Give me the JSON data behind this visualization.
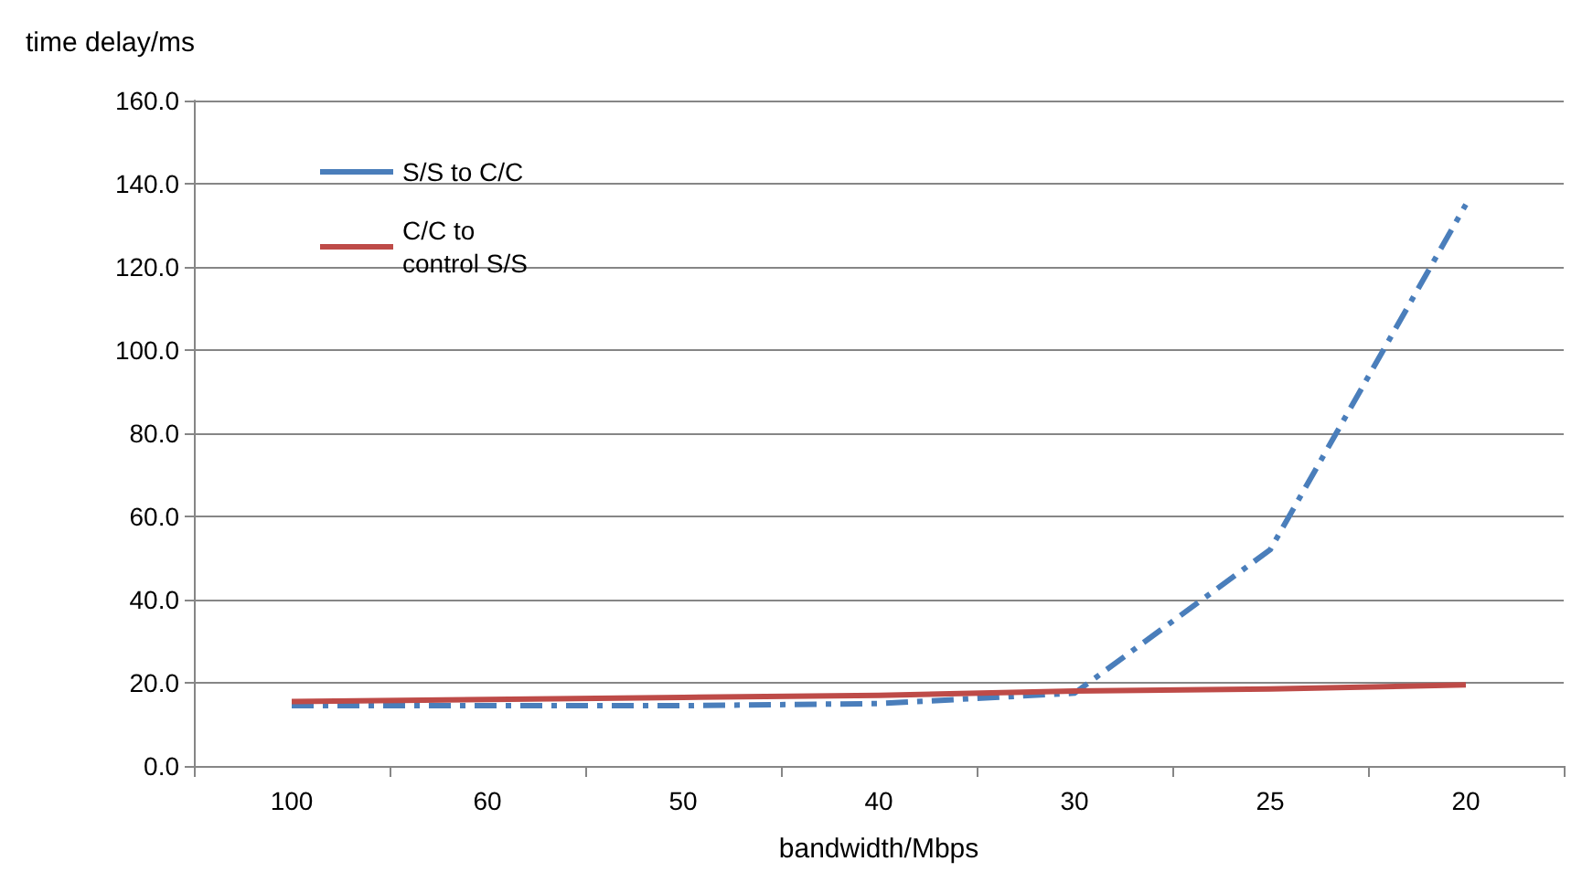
{
  "chart_data": {
    "type": "line",
    "xlabel": "bandwidth/Mbps",
    "ylabel": "time delay/ms",
    "categories": [
      "100",
      "60",
      "50",
      "40",
      "30",
      "25",
      "20"
    ],
    "series": [
      {
        "name": "S/S to C/C",
        "color": "#4a7ebb",
        "line_style": "dashed",
        "values": [
          14.5,
          14.5,
          14.5,
          15.0,
          17.5,
          52.0,
          135.0
        ]
      },
      {
        "name": "C/C to control S/S",
        "color": "#be4b48",
        "line_style": "solid",
        "values": [
          15.5,
          16.0,
          16.5,
          17.0,
          18.0,
          18.5,
          19.5
        ]
      }
    ],
    "ylim": [
      0,
      160
    ],
    "yticks": [
      {
        "value": 0,
        "label": "0.0"
      },
      {
        "value": 20,
        "label": "20.0"
      },
      {
        "value": 40,
        "label": "40.0"
      },
      {
        "value": 60,
        "label": "60.0"
      },
      {
        "value": 80,
        "label": "80.0"
      },
      {
        "value": 100,
        "label": "100.0"
      },
      {
        "value": 120,
        "label": "120.0"
      },
      {
        "value": 140,
        "label": "140.0"
      },
      {
        "value": 160,
        "label": "160.0"
      }
    ],
    "grid": "y",
    "legend": "top left",
    "marker": "none"
  }
}
